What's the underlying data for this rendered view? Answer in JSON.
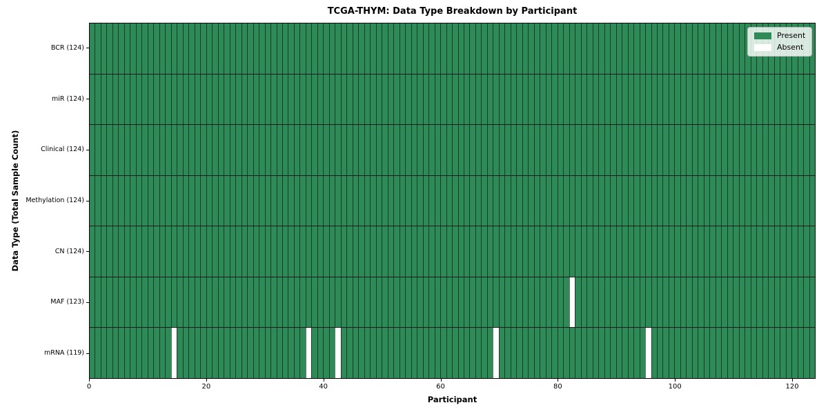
{
  "chart_data": {
    "type": "heatmap",
    "title": "TCGA-THYM: Data Type Breakdown by Participant",
    "xlabel": "Participant",
    "ylabel": "Data Type (Total Sample Count)",
    "n_participants": 124,
    "xlim": [
      0,
      124
    ],
    "x_ticks": [
      0,
      20,
      40,
      60,
      80,
      100,
      120
    ],
    "rows": [
      {
        "label": "BCR (124)",
        "total": 124,
        "absent_participants": []
      },
      {
        "label": "miR (124)",
        "total": 124,
        "absent_participants": []
      },
      {
        "label": "Clinical (124)",
        "total": 124,
        "absent_participants": []
      },
      {
        "label": "Methylation (124)",
        "total": 124,
        "absent_participants": []
      },
      {
        "label": "CN (124)",
        "total": 124,
        "absent_participants": []
      },
      {
        "label": "MAF (123)",
        "total": 123,
        "absent_participants": [
          82
        ]
      },
      {
        "label": "mRNA (119)",
        "total": 119,
        "absent_participants": [
          14,
          37,
          42,
          69,
          95
        ]
      }
    ],
    "legend": [
      {
        "label": "Present",
        "color": "#2e8b57"
      },
      {
        "label": "Absent",
        "color": "#ffffff"
      }
    ],
    "legend_position": "upper right",
    "colors": {
      "present": "#2e8b57",
      "absent": "#ffffff",
      "cell_edge": "#000000",
      "row_divider": "#1a1a1a",
      "frame": "#000000",
      "background": "#ffffff"
    },
    "grid": "cell-borders"
  }
}
